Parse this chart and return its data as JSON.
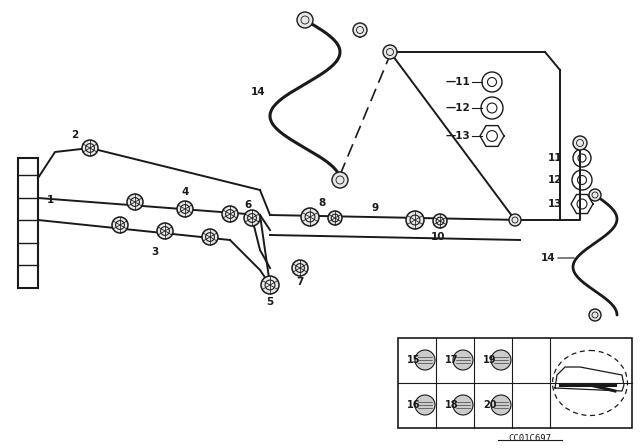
{
  "bg_color": "#ffffff",
  "line_color": "#1a1a1a",
  "part_code": "CC01C697",
  "pipe_lw": 1.4,
  "fitting_r": 0.013,
  "label_fs": 7.5
}
